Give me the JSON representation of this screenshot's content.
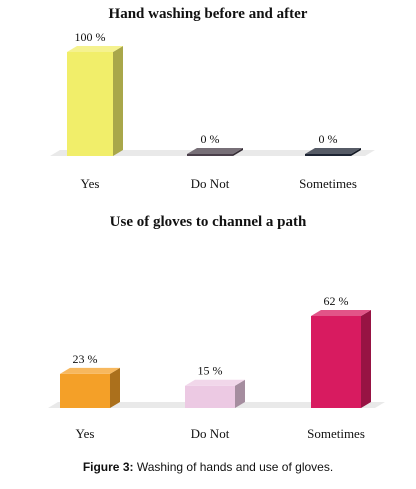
{
  "chart_data": [
    {
      "type": "bar",
      "title": "Hand washing before and after",
      "categories": [
        "Yes",
        "Do Not",
        "Sometimes"
      ],
      "values": [
        100,
        0,
        0
      ],
      "labels": [
        "100 %",
        "0 %",
        "0 %"
      ],
      "colors": [
        "#f1ee6a",
        "#4a3f4a",
        "#1d2433"
      ],
      "ylim": [
        0,
        100
      ]
    },
    {
      "type": "bar",
      "title": "Use of gloves to channel a path",
      "categories": [
        "Yes",
        "Do Not",
        "Sometimes"
      ],
      "values": [
        23,
        15,
        62
      ],
      "labels": [
        "23 %",
        "15 %",
        "62 %"
      ],
      "colors": [
        "#f4a028",
        "#ecc9e3",
        "#d81b60"
      ],
      "ylim": [
        0,
        62
      ]
    }
  ],
  "caption": {
    "label": "Figure 3:",
    "text": " Washing of hands and use of gloves."
  }
}
